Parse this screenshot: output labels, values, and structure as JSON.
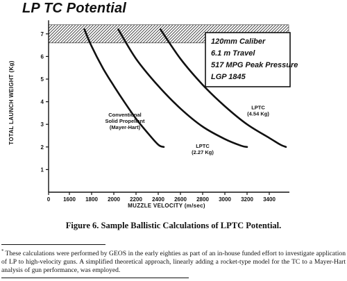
{
  "chart_data": {
    "type": "line",
    "title": "LP TC Potential",
    "xlabel": "MUZZLE VELOCITY (m/sec)",
    "ylabel": "TOTAL LAUNCH WEIGHT (Kg)",
    "xlim": [
      0,
      3550
    ],
    "ylim": [
      0,
      7.6
    ],
    "x_ticks": [
      "0",
      "1600",
      "1800",
      "2000",
      "2200",
      "2400",
      "2600",
      "2800",
      "3000",
      "3200",
      "3400"
    ],
    "y_ticks": [
      "1",
      "2",
      "3",
      "4",
      "5",
      "6",
      "7"
    ],
    "grid": false,
    "peak_pressure_band": {
      "y_from": 6.6,
      "y_to": 7.4
    },
    "info_box": [
      "120mm Caliber",
      "6.1 m Travel",
      "517 MPG Peak Pressure",
      "LGP 1845"
    ],
    "series": [
      {
        "name": "Conventional Solid Propellant (Mayer-Hart)",
        "label_lines": [
          "Conventional",
          "Solid Propellant",
          "(Mayer-Hart)"
        ],
        "points": [
          [
            1735,
            7.2
          ],
          [
            1800,
            6.45
          ],
          [
            1900,
            5.5
          ],
          [
            2000,
            4.7
          ],
          [
            2100,
            3.95
          ],
          [
            2200,
            3.25
          ],
          [
            2300,
            2.65
          ],
          [
            2400,
            2.1
          ],
          [
            2450,
            2.0
          ]
        ]
      },
      {
        "name": "LPTC (2.27 Kg)",
        "label_lines": [
          "LPTC",
          "(2.27 Kg)"
        ],
        "points": [
          [
            2040,
            7.2
          ],
          [
            2200,
            5.9
          ],
          [
            2400,
            4.7
          ],
          [
            2600,
            3.7
          ],
          [
            2800,
            2.9
          ],
          [
            3000,
            2.35
          ],
          [
            3150,
            2.05
          ],
          [
            3200,
            2.0
          ]
        ]
      },
      {
        "name": "LPTC (4.54 Kg)",
        "label_lines": [
          "LPTC",
          "(4.54 Kg)"
        ],
        "points": [
          [
            2420,
            7.2
          ],
          [
            2600,
            5.9
          ],
          [
            2800,
            4.75
          ],
          [
            3000,
            3.8
          ],
          [
            3200,
            3.0
          ],
          [
            3400,
            2.4
          ],
          [
            3500,
            2.1
          ],
          [
            3550,
            2.0
          ]
        ]
      }
    ]
  },
  "caption": "Figure 6.  Sample Ballistic Calculations of LPTC Potential.",
  "footnote": {
    "mark": "*",
    "text": "These calculations were performed by GEOS in the early eighties as part of an in-house funded effort to investigate application of LP to high-velocity guns.  A simplified theoretical approach, linearly adding a rocket-type model for the TC to a Mayer-Hart analysis of gun performance, was employed."
  }
}
